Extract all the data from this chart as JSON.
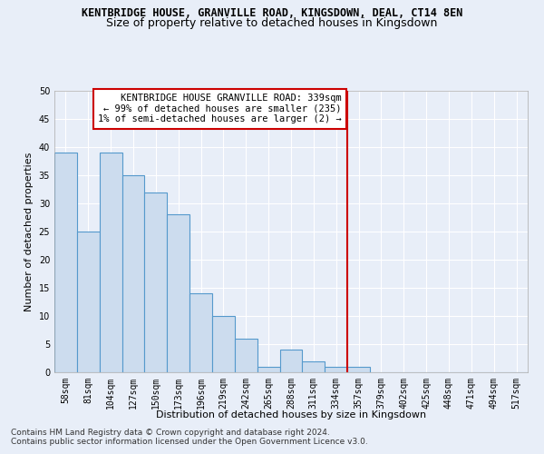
{
  "title_line1": "KENTBRIDGE HOUSE, GRANVILLE ROAD, KINGSDOWN, DEAL, CT14 8EN",
  "title_line2": "Size of property relative to detached houses in Kingsdown",
  "xlabel": "Distribution of detached houses by size in Kingsdown",
  "ylabel": "Number of detached properties",
  "categories": [
    "58sqm",
    "81sqm",
    "104sqm",
    "127sqm",
    "150sqm",
    "173sqm",
    "196sqm",
    "219sqm",
    "242sqm",
    "265sqm",
    "288sqm",
    "311sqm",
    "334sqm",
    "357sqm",
    "379sqm",
    "402sqm",
    "425sqm",
    "448sqm",
    "471sqm",
    "494sqm",
    "517sqm"
  ],
  "values": [
    39,
    25,
    39,
    35,
    32,
    28,
    14,
    10,
    6,
    1,
    4,
    2,
    1,
    1,
    0,
    0,
    0,
    0,
    0,
    0,
    0
  ],
  "bar_color": "#ccdcee",
  "bar_edge_color": "#5599cc",
  "vline_index": 12.5,
  "vline_color": "#cc0000",
  "annotation_text_line1": "KENTBRIDGE HOUSE GRANVILLE ROAD: 339sqm",
  "annotation_text_line2": "← 99% of detached houses are smaller (235)",
  "annotation_text_line3": "1% of semi-detached houses are larger (2) →",
  "annotation_box_facecolor": "#ffffff",
  "annotation_box_edgecolor": "#cc0000",
  "ylim": [
    0,
    50
  ],
  "yticks": [
    0,
    5,
    10,
    15,
    20,
    25,
    30,
    35,
    40,
    45,
    50
  ],
  "background_color": "#e8eef8",
  "grid_color": "#ffffff",
  "title1_fontsize": 8.5,
  "title2_fontsize": 9,
  "axis_label_fontsize": 8,
  "tick_fontsize": 7,
  "annotation_fontsize": 7.5,
  "footer_fontsize": 6.5,
  "footer_line1": "Contains HM Land Registry data © Crown copyright and database right 2024.",
  "footer_line2": "Contains public sector information licensed under the Open Government Licence v3.0."
}
